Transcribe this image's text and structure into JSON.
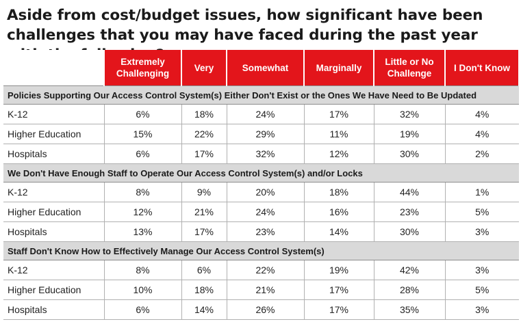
{
  "title": "Aside from cost/budget issues, how significant have been challenges that you may have faced during the past year with the following?",
  "columns": [
    "Extremely Challenging",
    "Very",
    "Somewhat",
    "Marginally",
    "Little or No Challenge",
    "I Don't Know"
  ],
  "sections": [
    {
      "heading": "Policies Supporting Our Access Control System(s) Either Don't Exist or the Ones We Have Need to Be Updated",
      "rows": [
        {
          "label": "K-12",
          "values": [
            "6%",
            "18%",
            "24%",
            "17%",
            "32%",
            "4%"
          ]
        },
        {
          "label": "Higher Education",
          "values": [
            "15%",
            "22%",
            "29%",
            "11%",
            "19%",
            "4%"
          ]
        },
        {
          "label": "Hospitals",
          "values": [
            "6%",
            "17%",
            "32%",
            "12%",
            "30%",
            "2%"
          ]
        }
      ]
    },
    {
      "heading": "We Don't Have Enough Staff to Operate Our Access Control System(s) and/or Locks",
      "rows": [
        {
          "label": "K-12",
          "values": [
            "8%",
            "9%",
            "20%",
            "18%",
            "44%",
            "1%"
          ]
        },
        {
          "label": "Higher Education",
          "values": [
            "12%",
            "21%",
            "24%",
            "16%",
            "23%",
            "5%"
          ]
        },
        {
          "label": "Hospitals",
          "values": [
            "13%",
            "17%",
            "23%",
            "14%",
            "30%",
            "3%"
          ]
        }
      ]
    },
    {
      "heading": "Staff Don't Know How to Effectively Manage Our Access Control System(s)",
      "rows": [
        {
          "label": "K-12",
          "values": [
            "8%",
            "6%",
            "22%",
            "19%",
            "42%",
            "3%"
          ]
        },
        {
          "label": "Higher Education",
          "values": [
            "10%",
            "18%",
            "21%",
            "17%",
            "28%",
            "5%"
          ]
        },
        {
          "label": "Hospitals",
          "values": [
            "6%",
            "14%",
            "26%",
            "17%",
            "35%",
            "3%"
          ]
        }
      ]
    }
  ],
  "colors": {
    "header_bg": "#e3151b",
    "section_bg": "#d9d9d9"
  }
}
